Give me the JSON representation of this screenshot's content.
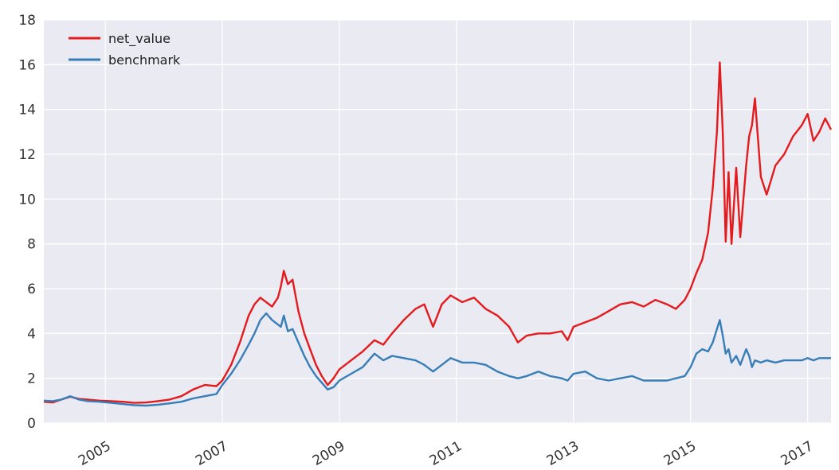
{
  "chart_data": {
    "type": "line",
    "title": "",
    "xlabel": "",
    "ylabel": "",
    "xlim": [
      2003.95,
      2017.4
    ],
    "ylim": [
      0,
      18
    ],
    "x_ticks": [
      2005,
      2007,
      2009,
      2011,
      2013,
      2015,
      2017
    ],
    "y_ticks": [
      0,
      2,
      4,
      6,
      8,
      10,
      12,
      14,
      16,
      18
    ],
    "grid": true,
    "legend": {
      "position": "top-left"
    },
    "series": [
      {
        "name": "net_value",
        "color": "#e41a1c",
        "x": [
          2003.95,
          2004.1,
          2004.25,
          2004.4,
          2004.55,
          2004.7,
          2004.9,
          2005.1,
          2005.3,
          2005.5,
          2005.7,
          2005.9,
          2006.1,
          2006.3,
          2006.5,
          2006.7,
          2006.9,
          2007.0,
          2007.15,
          2007.3,
          2007.45,
          2007.55,
          2007.65,
          2007.75,
          2007.85,
          2007.95,
          2008.0,
          2008.05,
          2008.12,
          2008.2,
          2008.3,
          2008.4,
          2008.5,
          2008.6,
          2008.7,
          2008.8,
          2008.9,
          2009.0,
          2009.2,
          2009.4,
          2009.6,
          2009.75,
          2009.9,
          2010.1,
          2010.3,
          2010.45,
          2010.6,
          2010.75,
          2010.9,
          2011.1,
          2011.3,
          2011.5,
          2011.7,
          2011.9,
          2012.05,
          2012.2,
          2012.4,
          2012.6,
          2012.8,
          2012.9,
          2013.0,
          2013.2,
          2013.4,
          2013.6,
          2013.8,
          2014.0,
          2014.2,
          2014.4,
          2014.6,
          2014.75,
          2014.9,
          2015.0,
          2015.1,
          2015.2,
          2015.3,
          2015.38,
          2015.45,
          2015.5,
          2015.55,
          2015.6,
          2015.65,
          2015.7,
          2015.78,
          2015.85,
          2015.95,
          2016.0,
          2016.05,
          2016.1,
          2016.2,
          2016.3,
          2016.45,
          2016.6,
          2016.75,
          2016.9,
          2017.0,
          2017.1,
          2017.2,
          2017.3,
          2017.4
        ],
        "values": [
          0.95,
          0.92,
          1.05,
          1.18,
          1.08,
          1.05,
          1.0,
          0.98,
          0.95,
          0.9,
          0.92,
          0.98,
          1.05,
          1.2,
          1.5,
          1.7,
          1.65,
          1.9,
          2.6,
          3.6,
          4.8,
          5.3,
          5.6,
          5.4,
          5.2,
          5.6,
          6.1,
          6.8,
          6.2,
          6.4,
          5.0,
          4.0,
          3.3,
          2.6,
          2.1,
          1.7,
          2.0,
          2.4,
          2.8,
          3.2,
          3.7,
          3.5,
          4.0,
          4.6,
          5.1,
          5.3,
          4.3,
          5.3,
          5.7,
          5.4,
          5.6,
          5.1,
          4.8,
          4.3,
          3.6,
          3.9,
          4.0,
          4.0,
          4.1,
          3.7,
          4.3,
          4.5,
          4.7,
          5.0,
          5.3,
          5.4,
          5.2,
          5.5,
          5.3,
          5.1,
          5.5,
          6.0,
          6.7,
          7.3,
          8.5,
          10.5,
          13.0,
          16.1,
          13.0,
          8.1,
          11.2,
          8.0,
          11.4,
          8.3,
          11.5,
          12.8,
          13.3,
          14.5,
          11.0,
          10.2,
          11.5,
          12.0,
          12.8,
          13.3,
          13.8,
          12.6,
          13.0,
          13.6,
          13.1
        ]
      },
      {
        "name": "benchmark",
        "color": "#377eb8",
        "x": [
          2003.95,
          2004.1,
          2004.25,
          2004.4,
          2004.55,
          2004.7,
          2004.9,
          2005.1,
          2005.3,
          2005.5,
          2005.7,
          2005.9,
          2006.1,
          2006.3,
          2006.5,
          2006.7,
          2006.9,
          2007.0,
          2007.15,
          2007.3,
          2007.45,
          2007.55,
          2007.65,
          2007.75,
          2007.85,
          2007.95,
          2008.0,
          2008.05,
          2008.12,
          2008.2,
          2008.3,
          2008.4,
          2008.5,
          2008.6,
          2008.7,
          2008.8,
          2008.9,
          2009.0,
          2009.2,
          2009.4,
          2009.6,
          2009.75,
          2009.9,
          2010.1,
          2010.3,
          2010.45,
          2010.6,
          2010.75,
          2010.9,
          2011.1,
          2011.3,
          2011.5,
          2011.7,
          2011.9,
          2012.05,
          2012.2,
          2012.4,
          2012.6,
          2012.8,
          2012.9,
          2013.0,
          2013.2,
          2013.4,
          2013.6,
          2013.8,
          2014.0,
          2014.2,
          2014.4,
          2014.6,
          2014.75,
          2014.9,
          2015.0,
          2015.1,
          2015.2,
          2015.3,
          2015.38,
          2015.45,
          2015.5,
          2015.55,
          2015.6,
          2015.65,
          2015.7,
          2015.78,
          2015.85,
          2015.95,
          2016.0,
          2016.05,
          2016.1,
          2016.2,
          2016.3,
          2016.45,
          2016.6,
          2016.75,
          2016.9,
          2017.0,
          2017.1,
          2017.2,
          2017.3,
          2017.4
        ],
        "values": [
          1.0,
          0.98,
          1.05,
          1.2,
          1.05,
          0.98,
          0.95,
          0.9,
          0.85,
          0.8,
          0.78,
          0.82,
          0.88,
          0.95,
          1.1,
          1.2,
          1.3,
          1.7,
          2.2,
          2.8,
          3.5,
          4.0,
          4.6,
          4.9,
          4.6,
          4.4,
          4.3,
          4.8,
          4.1,
          4.2,
          3.6,
          3.0,
          2.5,
          2.1,
          1.8,
          1.5,
          1.6,
          1.9,
          2.2,
          2.5,
          3.1,
          2.8,
          3.0,
          2.9,
          2.8,
          2.6,
          2.3,
          2.6,
          2.9,
          2.7,
          2.7,
          2.6,
          2.3,
          2.1,
          2.0,
          2.1,
          2.3,
          2.1,
          2.0,
          1.9,
          2.2,
          2.3,
          2.0,
          1.9,
          2.0,
          2.1,
          1.9,
          1.9,
          1.9,
          2.0,
          2.1,
          2.5,
          3.1,
          3.3,
          3.2,
          3.6,
          4.2,
          4.6,
          3.9,
          3.1,
          3.3,
          2.7,
          3.0,
          2.6,
          3.3,
          3.0,
          2.5,
          2.8,
          2.7,
          2.8,
          2.7,
          2.8,
          2.8,
          2.8,
          2.9,
          2.8,
          2.9,
          2.9,
          2.9
        ]
      }
    ]
  }
}
